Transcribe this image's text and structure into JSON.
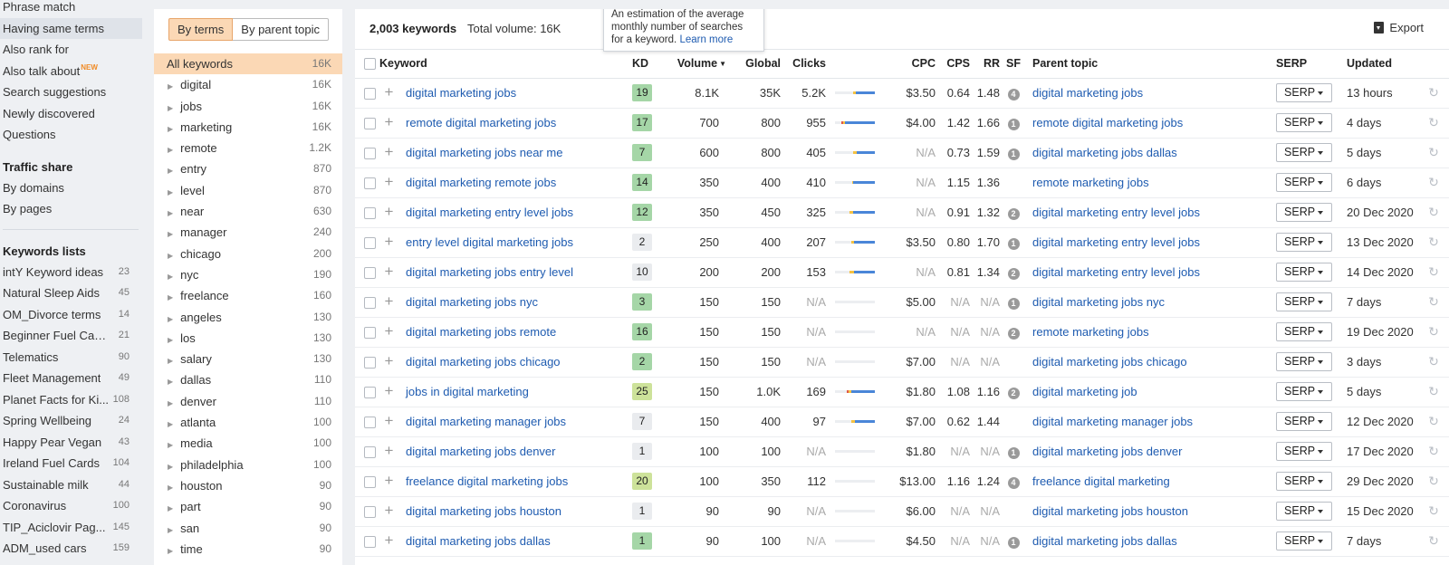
{
  "sidebar": {
    "items": [
      "Phrase match",
      "Having same terms",
      "Also rank for",
      "Also talk about",
      "Search suggestions",
      "Newly discovered",
      "Questions"
    ],
    "new_badge": "NEW",
    "traffic_share_heading": "Traffic share",
    "traffic_items": [
      "By domains",
      "By pages"
    ],
    "keywords_lists_heading": "Keywords lists",
    "keyword_lists": [
      {
        "name": "intY Keyword ideas",
        "count": "23"
      },
      {
        "name": "Natural Sleep Aids",
        "count": "45"
      },
      {
        "name": "OM_Divorce terms",
        "count": "14"
      },
      {
        "name": "Beginner Fuel Card...",
        "count": "21"
      },
      {
        "name": "Telematics",
        "count": "90"
      },
      {
        "name": "Fleet Management",
        "count": "49"
      },
      {
        "name": "Planet Facts for Ki...",
        "count": "108"
      },
      {
        "name": "Spring Wellbeing",
        "count": "24"
      },
      {
        "name": "Happy Pear Vegan",
        "count": "43"
      },
      {
        "name": "Ireland Fuel Cards",
        "count": "104"
      },
      {
        "name": "Sustainable milk",
        "count": "44"
      },
      {
        "name": "Coronavirus",
        "count": "100"
      },
      {
        "name": "TIP_Aciclovir Pag...",
        "count": "145"
      },
      {
        "name": "ADM_used cars",
        "count": "159"
      }
    ]
  },
  "terms_panel": {
    "by_terms": "By terms",
    "by_parent": "By parent topic",
    "all_label": "All keywords",
    "all_count": "16K",
    "terms": [
      {
        "t": "digital",
        "c": "16K"
      },
      {
        "t": "jobs",
        "c": "16K"
      },
      {
        "t": "marketing",
        "c": "16K"
      },
      {
        "t": "remote",
        "c": "1.2K"
      },
      {
        "t": "entry",
        "c": "870"
      },
      {
        "t": "level",
        "c": "870"
      },
      {
        "t": "near",
        "c": "630"
      },
      {
        "t": "manager",
        "c": "240"
      },
      {
        "t": "chicago",
        "c": "200"
      },
      {
        "t": "nyc",
        "c": "190"
      },
      {
        "t": "freelance",
        "c": "160"
      },
      {
        "t": "angeles",
        "c": "130"
      },
      {
        "t": "los",
        "c": "130"
      },
      {
        "t": "salary",
        "c": "130"
      },
      {
        "t": "dallas",
        "c": "110"
      },
      {
        "t": "denver",
        "c": "110"
      },
      {
        "t": "atlanta",
        "c": "100"
      },
      {
        "t": "media",
        "c": "100"
      },
      {
        "t": "philadelphia",
        "c": "100"
      },
      {
        "t": "houston",
        "c": "90"
      },
      {
        "t": "part",
        "c": "90"
      },
      {
        "t": "san",
        "c": "90"
      },
      {
        "t": "time",
        "c": "90"
      }
    ]
  },
  "main": {
    "keyword_count": "2,003 keywords",
    "total_volume": "Total volume: 16K",
    "export_label": "Export",
    "tooltip_text": "An estimation of the average monthly number of searches for a keyword.",
    "tooltip_link": "Learn more",
    "headers": {
      "keyword": "Keyword",
      "kd": "KD",
      "volume": "Volume",
      "global": "Global",
      "clicks": "Clicks",
      "cpc": "CPC",
      "cps": "CPS",
      "rr": "RR",
      "sf": "SF",
      "parent": "Parent topic",
      "serp": "SERP",
      "updated": "Updated"
    },
    "serp_label": "SERP",
    "rows": [
      {
        "kw": "digital marketing jobs",
        "kd": "19",
        "vol": "8.1K",
        "global": "35K",
        "clicks": "5.2K",
        "bar": [
          0.46,
          0.06,
          0.48
        ],
        "cpc": "$3.50",
        "cps": "0.64",
        "rr": "1.48",
        "sf": "4",
        "parent": "digital marketing jobs",
        "updated": "13 hours"
      },
      {
        "kw": "remote digital marketing jobs",
        "kd": "17",
        "vol": "700",
        "global": "800",
        "clicks": "955",
        "bar": [
          0.2,
          0.06,
          0.74
        ],
        "cpc": "$4.00",
        "cps": "1.42",
        "rr": "1.66",
        "sf": "1",
        "parent": "remote digital marketing jobs",
        "updated": "4 days"
      },
      {
        "kw": "digital marketing jobs near me",
        "kd": "7",
        "vol": "600",
        "global": "800",
        "clicks": "405",
        "bar": [
          0.46,
          0.08,
          0.46
        ],
        "cpc": "N/A",
        "cps": "0.73",
        "rr": "1.59",
        "sf": "1",
        "parent": "digital marketing jobs dallas",
        "updated": "5 days"
      },
      {
        "kw": "digital marketing remote jobs",
        "kd": "14",
        "vol": "350",
        "global": "400",
        "clicks": "410",
        "bar": [
          0.43,
          0.02,
          0.55
        ],
        "cpc": "N/A",
        "cps": "1.15",
        "rr": "1.36",
        "sf": "",
        "parent": "remote marketing jobs",
        "updated": "6 days"
      },
      {
        "kw": "digital marketing entry level jobs",
        "kd": "12",
        "vol": "350",
        "global": "450",
        "clicks": "325",
        "bar": [
          0.36,
          0.1,
          0.54
        ],
        "cpc": "N/A",
        "cps": "0.91",
        "rr": "1.32",
        "sf": "2",
        "parent": "digital marketing entry level jobs",
        "updated": "20 Dec 2020"
      },
      {
        "kw": "entry level digital marketing jobs",
        "kd": "2",
        "vol": "250",
        "global": "400",
        "clicks": "207",
        "bar": [
          0.4,
          0.08,
          0.52
        ],
        "cpc": "$3.50",
        "cps": "0.80",
        "rr": "1.70",
        "sf": "1",
        "parent": "digital marketing entry level jobs",
        "updated": "13 Dec 2020"
      },
      {
        "kw": "digital marketing jobs entry level",
        "kd": "10",
        "vol": "200",
        "global": "200",
        "clicks": "153",
        "bar": [
          0.36,
          0.12,
          0.52
        ],
        "cpc": "N/A",
        "cps": "0.81",
        "rr": "1.34",
        "sf": "2",
        "parent": "digital marketing entry level jobs",
        "updated": "14 Dec 2020"
      },
      {
        "kw": "digital marketing jobs nyc",
        "kd": "3",
        "vol": "150",
        "global": "150",
        "clicks": "N/A",
        "bar": null,
        "cpc": "$5.00",
        "cps": "N/A",
        "rr": "N/A",
        "sf": "1",
        "parent": "digital marketing jobs nyc",
        "updated": "7 days"
      },
      {
        "kw": "digital marketing jobs remote",
        "kd": "16",
        "vol": "150",
        "global": "150",
        "clicks": "N/A",
        "bar": null,
        "cpc": "N/A",
        "cps": "N/A",
        "rr": "N/A",
        "sf": "2",
        "parent": "remote marketing jobs",
        "updated": "19 Dec 2020"
      },
      {
        "kw": "digital marketing jobs chicago",
        "kd": "2",
        "vol": "150",
        "global": "150",
        "clicks": "N/A",
        "bar": null,
        "cpc": "$7.00",
        "cps": "N/A",
        "rr": "N/A",
        "sf": "",
        "parent": "digital marketing jobs chicago",
        "updated": "3 days"
      },
      {
        "kw": "jobs in digital marketing",
        "kd": "25",
        "vol": "150",
        "global": "1.0K",
        "clicks": "169",
        "bar": [
          0.34,
          0.08,
          0.58
        ],
        "cpc": "$1.80",
        "cps": "1.08",
        "rr": "1.16",
        "sf": "2",
        "parent": "digital marketing job",
        "updated": "5 days"
      },
      {
        "kw": "digital marketing manager jobs",
        "kd": "7",
        "vol": "150",
        "global": "400",
        "clicks": "97",
        "bar": [
          0.4,
          0.1,
          0.5
        ],
        "cpc": "$7.00",
        "cps": "0.62",
        "rr": "1.44",
        "sf": "",
        "parent": "digital marketing manager jobs",
        "updated": "12 Dec 2020"
      },
      {
        "kw": "digital marketing jobs denver",
        "kd": "1",
        "vol": "100",
        "global": "100",
        "clicks": "N/A",
        "bar": null,
        "cpc": "$1.80",
        "cps": "N/A",
        "rr": "N/A",
        "sf": "1",
        "parent": "digital marketing jobs denver",
        "updated": "17 Dec 2020"
      },
      {
        "kw": "freelance digital marketing jobs",
        "kd": "20",
        "vol": "100",
        "global": "350",
        "clicks": "112",
        "bar": null,
        "cpc": "$13.00",
        "cps": "1.16",
        "rr": "1.24",
        "sf": "4",
        "parent": "freelance digital marketing",
        "updated": "29 Dec 2020"
      },
      {
        "kw": "digital marketing jobs houston",
        "kd": "1",
        "vol": "90",
        "global": "90",
        "clicks": "N/A",
        "bar": null,
        "cpc": "$6.00",
        "cps": "N/A",
        "rr": "N/A",
        "sf": "",
        "parent": "digital marketing jobs houston",
        "updated": "15 Dec 2020"
      },
      {
        "kw": "digital marketing jobs dallas",
        "kd": "1",
        "vol": "90",
        "global": "100",
        "clicks": "N/A",
        "bar": null,
        "cpc": "$4.50",
        "cps": "N/A",
        "rr": "N/A",
        "sf": "1",
        "parent": "digital marketing jobs dallas",
        "updated": "7 days"
      }
    ],
    "colors": {
      "link": "#1e5bb0",
      "bar_blue": "#4a86d8",
      "bar_yellow": "#f5c242",
      "bar_red": "#e05a4a",
      "active_filter": "#fbd8b5"
    }
  }
}
